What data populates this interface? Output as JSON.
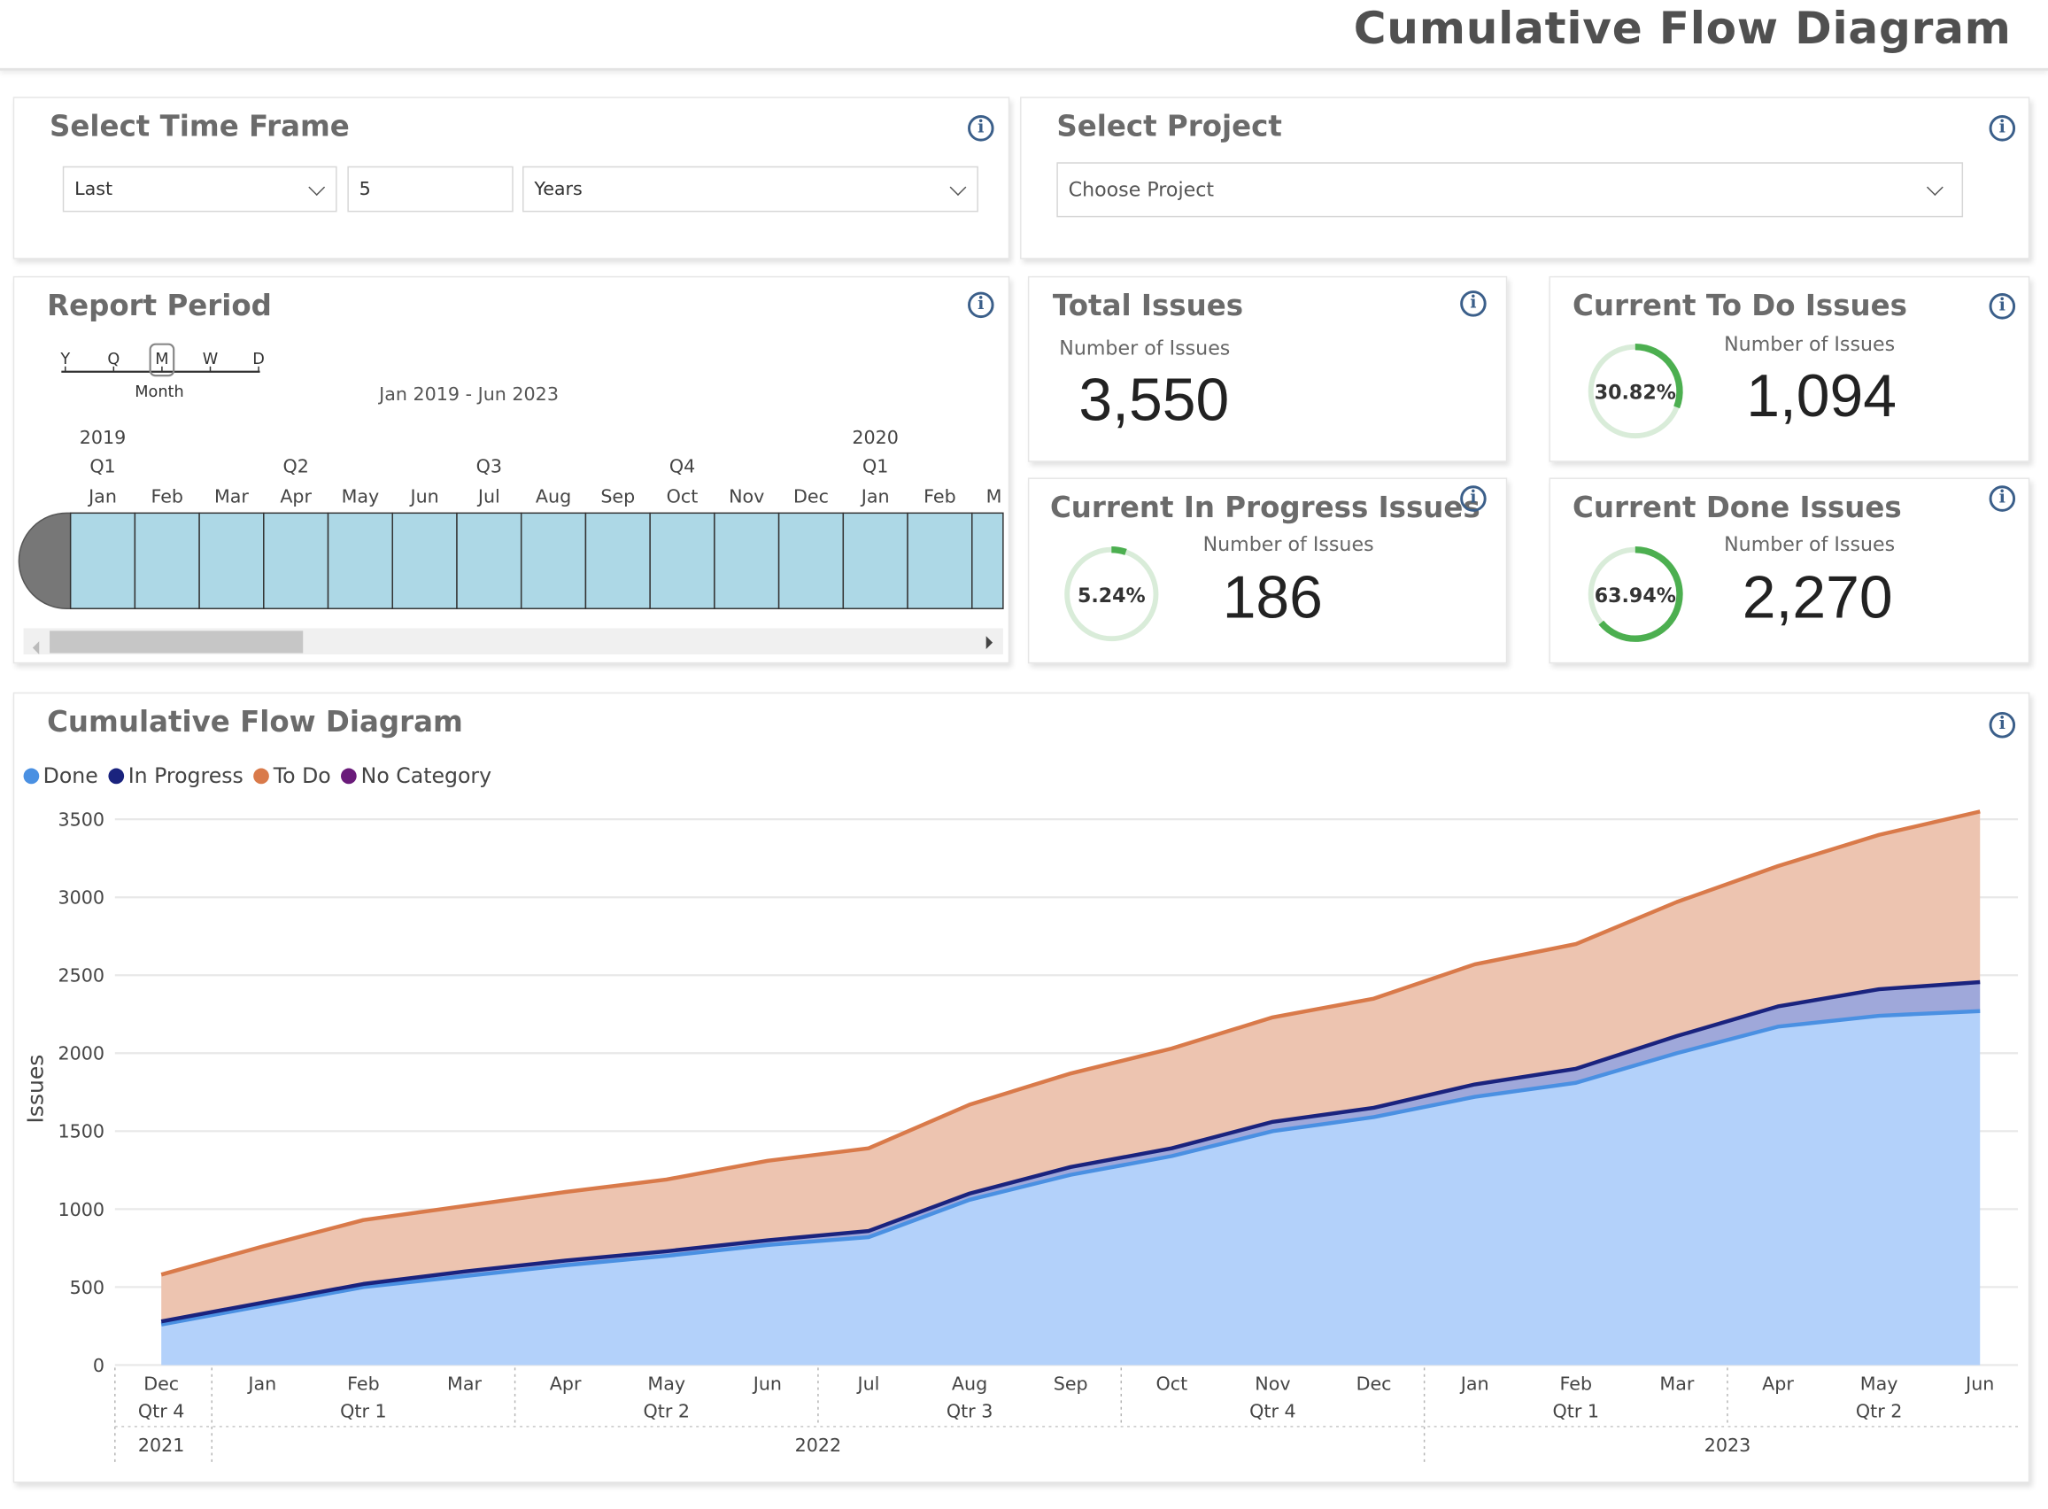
{
  "header": {
    "title": "Cumulative Flow Diagram"
  },
  "time_frame": {
    "title": "Select Time Frame",
    "mode": "Last",
    "amount": "5",
    "unit": "Years",
    "info_glyph": "i"
  },
  "project": {
    "title": "Select Project",
    "placeholder": "Choose Project",
    "info_glyph": "i"
  },
  "report_period": {
    "title": "Report Period",
    "granularity_labels": [
      "Y",
      "Q",
      "M",
      "W",
      "D"
    ],
    "granularity_selected": "M",
    "granularity_name": "Month",
    "range_text": "Jan 2019 - Jun 2023",
    "year_labels": [
      "2019",
      "2020"
    ],
    "quarter_labels": [
      "Q1",
      "Q2",
      "Q3",
      "Q4",
      "Q1"
    ],
    "month_labels": [
      "Jan",
      "Feb",
      "Mar",
      "Apr",
      "May",
      "Jun",
      "Jul",
      "Aug",
      "Sep",
      "Oct",
      "Nov",
      "Dec",
      "Jan",
      "Feb",
      "M"
    ],
    "bar_color": "#add8e6",
    "scrollbar_position": 0.0,
    "info_glyph": "i"
  },
  "kpis": {
    "total": {
      "title": "Total Issues",
      "subtitle": "Number of Issues",
      "value": "3,550"
    },
    "todo": {
      "title": "Current To Do Issues",
      "subtitle": "Number of Issues",
      "value": "1,094",
      "percent_label": "30.82%",
      "percent": 30.82
    },
    "in_progress": {
      "title": "Current In Progress Issues",
      "subtitle": "Number of Issues",
      "value": "186",
      "percent_label": "5.24%",
      "percent": 5.24
    },
    "done": {
      "title": "Current Done Issues",
      "subtitle": "Number of Issues",
      "value": "2,270",
      "percent_label": "63.94%",
      "percent": 63.94
    },
    "info_glyph": "i",
    "gauge_color": "#4caf50",
    "gauge_track": "#d9ecd9"
  },
  "cfd": {
    "title": "Cumulative Flow Diagram",
    "info_glyph": "i",
    "legend": [
      {
        "label": "Done",
        "color": "#4a90e2"
      },
      {
        "label": "In Progress",
        "color": "#1a237e"
      },
      {
        "label": "To Do",
        "color": "#d97a4a"
      },
      {
        "label": "No Category",
        "color": "#6a1b7a"
      }
    ]
  },
  "chart_data": {
    "type": "area",
    "title": "Cumulative Flow Diagram",
    "ylabel": "Issues",
    "xlabel": "",
    "ylim": [
      0,
      3500
    ],
    "yticks": [
      0,
      500,
      1000,
      1500,
      2000,
      2500,
      3000,
      3500
    ],
    "grid": true,
    "legend_position": "top-left",
    "stacked": true,
    "categories": [
      "Dec",
      "Jan",
      "Feb",
      "Mar",
      "Apr",
      "May",
      "Jun",
      "Jul",
      "Aug",
      "Sep",
      "Oct",
      "Nov",
      "Dec",
      "Jan",
      "Feb",
      "Mar",
      "Apr",
      "May",
      "Jun"
    ],
    "quarter_labels": [
      {
        "label": "Qtr 4",
        "index": 0
      },
      {
        "label": "Qtr 1",
        "index": 2
      },
      {
        "label": "Qtr 2",
        "index": 5
      },
      {
        "label": "Qtr 3",
        "index": 8
      },
      {
        "label": "Qtr 4",
        "index": 11
      },
      {
        "label": "Qtr 1",
        "index": 14
      },
      {
        "label": "Qtr 2",
        "index": 17
      }
    ],
    "year_labels": [
      {
        "label": "2021",
        "index": 0
      },
      {
        "label": "2022",
        "index": 6.5
      },
      {
        "label": "2023",
        "index": 15.5
      }
    ],
    "quarter_separators": [
      0.5,
      3.5,
      6.5,
      9.5,
      12.5,
      15.5
    ],
    "year_separators": [
      0.5,
      12.5
    ],
    "series": [
      {
        "name": "Done",
        "color": "#4a90e2",
        "fill": "#b3d1fa",
        "values": [
          260,
          380,
          500,
          570,
          640,
          700,
          770,
          820,
          1060,
          1220,
          1340,
          1500,
          1590,
          1720,
          1810,
          2000,
          2170,
          2240,
          2270
        ]
      },
      {
        "name": "In Progress",
        "color": "#1a237e",
        "fill": "#9fa8da",
        "values": [
          20,
          20,
          20,
          30,
          30,
          30,
          30,
          40,
          40,
          50,
          50,
          60,
          60,
          80,
          90,
          110,
          130,
          170,
          186
        ]
      },
      {
        "name": "To Do",
        "color": "#d97a4a",
        "fill": "#edc4b0",
        "values": [
          300,
          360,
          410,
          420,
          440,
          460,
          510,
          530,
          570,
          600,
          640,
          670,
          700,
          770,
          800,
          860,
          900,
          990,
          1094
        ]
      },
      {
        "name": "No Category",
        "color": "#6a1b7a",
        "fill": "#c7a4cf",
        "values": [
          0,
          0,
          0,
          0,
          0,
          0,
          0,
          0,
          0,
          0,
          0,
          0,
          0,
          0,
          0,
          0,
          0,
          0,
          0
        ]
      }
    ]
  }
}
